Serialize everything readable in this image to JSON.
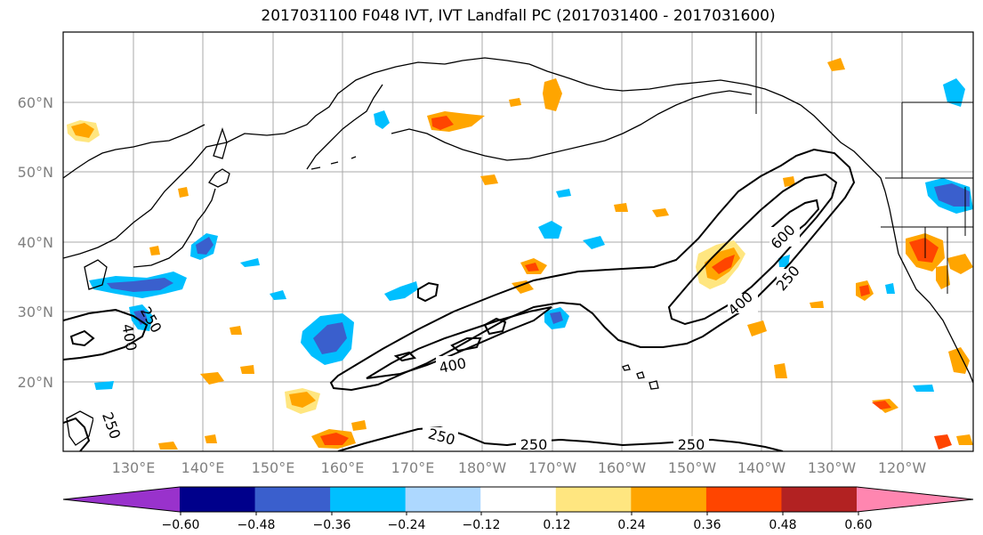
{
  "title": "2017031100 F048 IVT, IVT Landfall PC (2017031400 - 2017031600)",
  "axes": {
    "lat_labels": [
      "20°N",
      "30°N",
      "40°N",
      "50°N",
      "60°N"
    ],
    "lon_labels": [
      "130°E",
      "140°E",
      "150°E",
      "160°E",
      "170°E",
      "180°W",
      "170°W",
      "160°W",
      "150°W",
      "140°W",
      "130°W",
      "120°W"
    ]
  },
  "contour_labels": [
    "400",
    "250",
    "400",
    "250",
    "250",
    "250",
    "600",
    "400",
    "250",
    "250"
  ],
  "colorbar": {
    "tick_labels": [
      "−0.60",
      "−0.48",
      "−0.36",
      "−0.24",
      "−0.12",
      "0.12",
      "0.24",
      "0.36",
      "0.48",
      "0.60"
    ],
    "colors": [
      "#9932CC",
      "#00008B",
      "#3A5FCD",
      "#00BFFF",
      "#ADD8FF",
      "#FFFFFF",
      "#FFE680",
      "#FFA500",
      "#FF4500",
      "#B22222",
      "#FF86B0"
    ]
  },
  "chart_data": {
    "type": "map",
    "title": "2017031100 F048 IVT, IVT Landfall PC (2017031400 - 2017031600)",
    "contour_levels": [
      250,
      400,
      600
    ],
    "colorbar_levels": [
      -0.6,
      -0.48,
      -0.36,
      -0.24,
      -0.12,
      0.12,
      0.24,
      0.36,
      0.48,
      0.6
    ],
    "grid": true
  }
}
